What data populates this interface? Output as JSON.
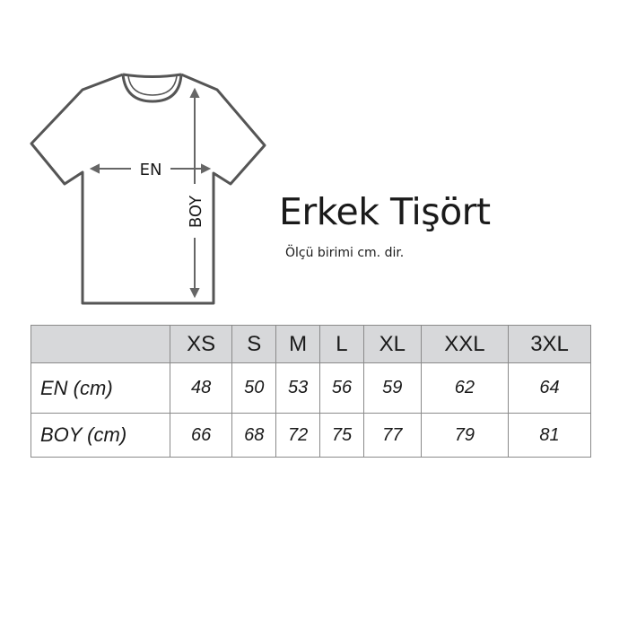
{
  "title": "Erkek Tişört",
  "subtitle": "Ölçü birimi cm. dir.",
  "diagram": {
    "width_label": "EN",
    "length_label": "BOY",
    "line_color": "#555555"
  },
  "table": {
    "header_bg": "#d7d8da",
    "sizes": [
      "XS",
      "S",
      "M",
      "L",
      "XL",
      "XXL",
      "3XL"
    ],
    "rows": [
      {
        "label": "EN (cm)",
        "values": [
          "48",
          "50",
          "53",
          "56",
          "59",
          "62",
          "64"
        ]
      },
      {
        "label": "BOY (cm)",
        "values": [
          "66",
          "68",
          "72",
          "75",
          "77",
          "79",
          "81"
        ]
      }
    ]
  }
}
